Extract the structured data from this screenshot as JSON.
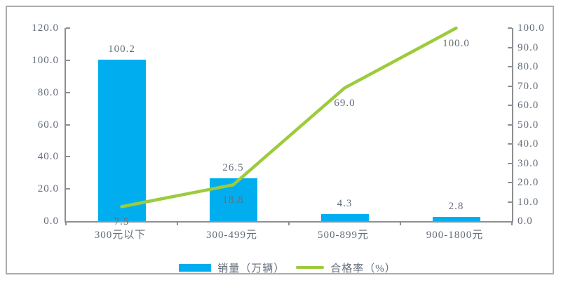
{
  "colors": {
    "bar": "#00AEEF",
    "line": "#9CCB3C",
    "text": "#636D7A",
    "axis": "#8F8F8F",
    "frame": "#ACACAC",
    "background": "#FFFFFF"
  },
  "legend": {
    "entries": [
      {
        "label": "销量（万辆）",
        "swatch": "bar",
        "color": "#00AEEF"
      },
      {
        "label": "合格率（%）",
        "swatch": "line",
        "color": "#9CCB3C"
      }
    ]
  },
  "chart_data": {
    "type": "combo-bar-line",
    "title": "",
    "categories": [
      "300元以下",
      "300-499元",
      "500-899元",
      "900-1800元"
    ],
    "series": [
      {
        "name": "销量（万辆）",
        "type": "bar",
        "axis": "left",
        "color": "#00AEEF",
        "values": [
          100.2,
          26.5,
          4.3,
          2.8
        ],
        "data_labels": [
          "100.2",
          "26.5",
          "4.3",
          "2.8"
        ]
      },
      {
        "name": "合格率（%）",
        "type": "line",
        "axis": "right",
        "color": "#9CCB3C",
        "values": [
          7.5,
          18.8,
          69.0,
          100.0
        ],
        "data_labels": [
          "7.5",
          "18.8",
          "69.0",
          "100.0"
        ]
      }
    ],
    "left_axis": {
      "min": 0,
      "max": 120,
      "step": 20,
      "tick_labels": [
        "0.0",
        "20.0",
        "40.0",
        "60.0",
        "80.0",
        "100.0",
        "120.0"
      ]
    },
    "right_axis": {
      "min": 0,
      "max": 100,
      "step": 10,
      "tick_labels": [
        "0.0",
        "10.0",
        "20.0",
        "30.0",
        "40.0",
        "50.0",
        "60.0",
        "70.0",
        "80.0",
        "90.0",
        "100.0"
      ]
    },
    "legend_position": "bottom",
    "grid": false
  }
}
